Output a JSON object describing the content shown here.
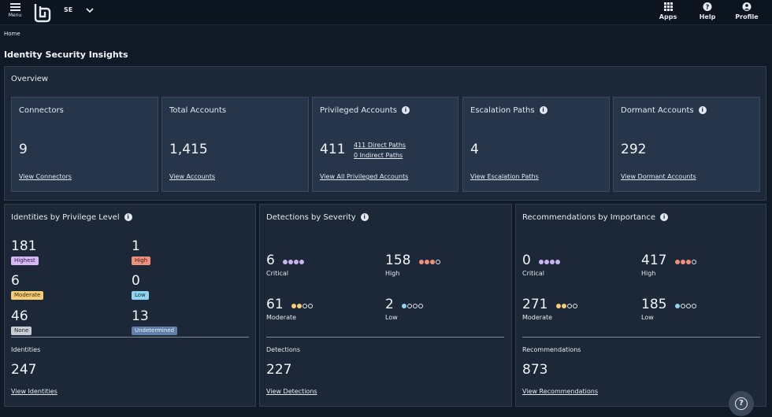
{
  "topbar": {
    "menu_label": "Menu",
    "tenant": "SE",
    "apps_label": "Apps",
    "help_label": "Help",
    "profile_label": "Profile"
  },
  "breadcrumb": "Home",
  "page_title": "Identity Security Insights",
  "overview": {
    "title": "Overview",
    "connectors": {
      "title": "Connectors",
      "value": "9",
      "link": "View Connectors"
    },
    "accounts": {
      "title": "Total Accounts",
      "value": "1,415",
      "link": "View Accounts"
    },
    "privileged": {
      "title": "Privileged Accounts",
      "value": "411",
      "direct": "411 Direct Paths",
      "indirect": "0 Indirect Paths",
      "link": "View All Privileged Accounts"
    },
    "escalation": {
      "title": "Escalation Paths",
      "value": "4",
      "link": "View Escalation Paths"
    },
    "dormant": {
      "title": "Dormant Accounts",
      "value": "292",
      "link": "View Dormant Accounts"
    }
  },
  "privilege": {
    "title": "Identities by Privilege Level",
    "levels": [
      {
        "value": "181",
        "label": "Highest",
        "color": "#d7b6f5"
      },
      {
        "value": "1",
        "label": "High",
        "color": "#f0907c"
      },
      {
        "value": "6",
        "label": "Moderate",
        "color": "#f5cc78"
      },
      {
        "value": "0",
        "label": "Low",
        "color": "#8fd4f0"
      },
      {
        "value": "46",
        "label": "None",
        "color": "#c8cdd4"
      },
      {
        "value": "13",
        "label": "Undetermined",
        "color": "#5f7fa8"
      }
    ],
    "footer_label": "Identities",
    "footer_value": "247",
    "footer_link": "View Identities"
  },
  "detections": {
    "title": "Detections by Severity",
    "items": [
      {
        "value": "6",
        "label": "Critical"
      },
      {
        "value": "158",
        "label": "High"
      },
      {
        "value": "61",
        "label": "Moderate"
      },
      {
        "value": "2",
        "label": "Low"
      }
    ],
    "footer_label": "Detections",
    "footer_value": "227",
    "footer_link": "View Detections"
  },
  "recommendations": {
    "title": "Recommendations by Importance",
    "items": [
      {
        "value": "0",
        "label": "Critical"
      },
      {
        "value": "417",
        "label": "High"
      },
      {
        "value": "271",
        "label": "Moderate"
      },
      {
        "value": "185",
        "label": "Low"
      }
    ],
    "footer_label": "Recommendations",
    "footer_value": "873",
    "footer_link": "View Recommendations"
  },
  "colors": {
    "critical": "#c9b3f2",
    "high": "#f0907c",
    "moderate": "#f5cc78",
    "low": "#8fd4f0"
  },
  "icons": {
    "menu": "hamburger-icon",
    "apps": "grid-icon",
    "help": "question-circle-icon",
    "profile": "person-icon",
    "info": "info-icon",
    "fab": "help-bubble-icon"
  }
}
